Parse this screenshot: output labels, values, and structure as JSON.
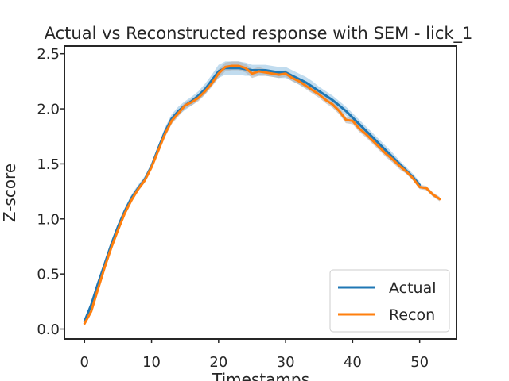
{
  "chart_data": {
    "type": "line",
    "title": "Actual vs Reconstructed response with SEM - lick_1",
    "xlabel": "Timestamps",
    "ylabel": "Z-score",
    "xlim": [
      -3,
      55.5
    ],
    "ylim": [
      -0.09,
      2.57
    ],
    "xticks": [
      0,
      10,
      20,
      30,
      40,
      50
    ],
    "xtick_labels": [
      "0",
      "10",
      "20",
      "30",
      "40",
      "50"
    ],
    "yticks": [
      0.0,
      0.5,
      1.0,
      1.5,
      2.0,
      2.5
    ],
    "ytick_labels": [
      "0.0",
      "0.5",
      "1.0",
      "1.5",
      "2.0",
      "2.5"
    ],
    "grid": false,
    "legend_position": "lower right",
    "series": [
      {
        "name": "Actual",
        "color": "#1f77b4",
        "band_color": "#a6cde8",
        "x": [
          0,
          1,
          2,
          3,
          4,
          5,
          6,
          7,
          8,
          9,
          10,
          11,
          12,
          13,
          14,
          15,
          16,
          17,
          18,
          19,
          20,
          21,
          22,
          23,
          24,
          25,
          26,
          27,
          28,
          29,
          30,
          31,
          32,
          33,
          34,
          35,
          36,
          37,
          38,
          39,
          40,
          41,
          42,
          43,
          44,
          45,
          46,
          47,
          48,
          49,
          50
        ],
        "y": [
          0.07,
          0.22,
          0.41,
          0.59,
          0.77,
          0.93,
          1.07,
          1.19,
          1.28,
          1.36,
          1.48,
          1.64,
          1.79,
          1.91,
          1.98,
          2.03,
          2.07,
          2.12,
          2.18,
          2.26,
          2.34,
          2.37,
          2.37,
          2.37,
          2.36,
          2.35,
          2.35,
          2.35,
          2.34,
          2.33,
          2.33,
          2.3,
          2.27,
          2.24,
          2.2,
          2.16,
          2.12,
          2.08,
          2.03,
          1.98,
          1.92,
          1.86,
          1.8,
          1.74,
          1.68,
          1.62,
          1.56,
          1.5,
          1.44,
          1.38,
          1.31
        ],
        "sem": [
          0.03,
          0.03,
          0.03,
          0.03,
          0.03,
          0.03,
          0.03,
          0.03,
          0.03,
          0.03,
          0.03,
          0.03,
          0.04,
          0.04,
          0.04,
          0.04,
          0.04,
          0.04,
          0.05,
          0.05,
          0.06,
          0.06,
          0.06,
          0.06,
          0.06,
          0.05,
          0.05,
          0.05,
          0.05,
          0.05,
          0.05,
          0.05,
          0.05,
          0.05,
          0.05,
          0.04,
          0.04,
          0.04,
          0.04,
          0.04,
          0.04,
          0.04,
          0.04,
          0.04,
          0.04,
          0.04,
          0.04,
          0.03,
          0.03,
          0.03,
          0.03
        ]
      },
      {
        "name": "Recon",
        "color": "#ff7f0e",
        "band_color": "#b0b0b0",
        "x": [
          0,
          1,
          2,
          3,
          4,
          5,
          6,
          7,
          8,
          9,
          10,
          11,
          12,
          13,
          14,
          15,
          16,
          17,
          18,
          19,
          20,
          21,
          22,
          23,
          24,
          25,
          26,
          27,
          28,
          29,
          30,
          31,
          32,
          33,
          34,
          35,
          36,
          37,
          38,
          39,
          40,
          41,
          42,
          43,
          44,
          45,
          46,
          47,
          48,
          49,
          50,
          51,
          52,
          53
        ],
        "y": [
          0.05,
          0.16,
          0.36,
          0.56,
          0.74,
          0.9,
          1.05,
          1.17,
          1.27,
          1.35,
          1.47,
          1.62,
          1.77,
          1.89,
          1.96,
          2.03,
          2.06,
          2.1,
          2.16,
          2.23,
          2.32,
          2.38,
          2.39,
          2.39,
          2.37,
          2.32,
          2.34,
          2.33,
          2.32,
          2.31,
          2.32,
          2.28,
          2.25,
          2.21,
          2.17,
          2.13,
          2.08,
          2.04,
          1.98,
          1.9,
          1.89,
          1.82,
          1.77,
          1.71,
          1.65,
          1.59,
          1.54,
          1.48,
          1.43,
          1.37,
          1.29,
          1.28,
          1.22,
          1.18
        ],
        "sem": [
          0.02,
          0.02,
          0.02,
          0.02,
          0.02,
          0.02,
          0.02,
          0.02,
          0.02,
          0.02,
          0.02,
          0.02,
          0.03,
          0.03,
          0.03,
          0.03,
          0.03,
          0.03,
          0.03,
          0.03,
          0.04,
          0.04,
          0.04,
          0.04,
          0.04,
          0.04,
          0.04,
          0.03,
          0.03,
          0.03,
          0.03,
          0.03,
          0.03,
          0.03,
          0.03,
          0.03,
          0.03,
          0.03,
          0.03,
          0.03,
          0.03,
          0.03,
          0.03,
          0.03,
          0.03,
          0.03,
          0.03,
          0.03,
          0.02,
          0.02,
          0.02,
          0.02,
          0.02,
          0.02
        ]
      }
    ]
  }
}
